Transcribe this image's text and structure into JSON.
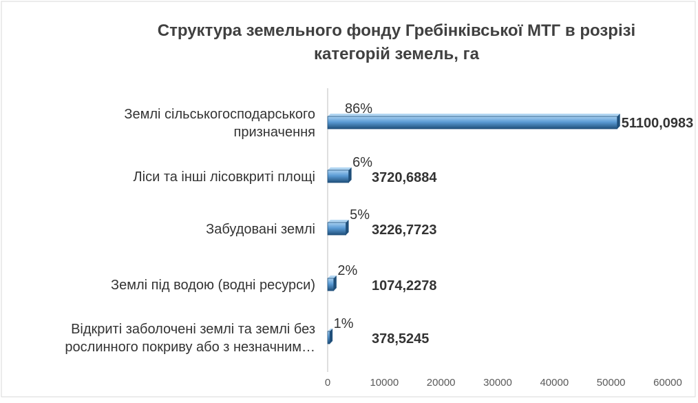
{
  "chart_data": {
    "type": "bar",
    "orientation": "horizontal",
    "title_lines": [
      "Структура  земельного фонду Гребінківської МТГ в розрізі",
      "категорій земель, га"
    ],
    "categories": [
      {
        "label_lines": [
          "Землі сільськогосподарського",
          "призначення"
        ],
        "value": 51100.0983,
        "value_label": "51100,0983",
        "pct_label": "86%"
      },
      {
        "label_lines": [
          "Ліси та інші  лісовкриті площі"
        ],
        "value": 3720.6884,
        "value_label": "3720,6884",
        "pct_label": "6%"
      },
      {
        "label_lines": [
          "Забудовані землі"
        ],
        "value": 3226.7723,
        "value_label": "3226,7723",
        "pct_label": "5%"
      },
      {
        "label_lines": [
          "Землі під водою (водні ресурси)"
        ],
        "value": 1074.2278,
        "value_label": "1074,2278",
        "pct_label": "2%"
      },
      {
        "label_lines": [
          "Відкриті заболочені землі та землі без",
          "рослинного покриву або з незначним…"
        ],
        "value": 378.5245,
        "value_label": "378,5245",
        "pct_label": "1%"
      }
    ],
    "x_ticks": [
      "0",
      "10000",
      "20000",
      "30000",
      "40000",
      "50000",
      "60000"
    ],
    "xlim": [
      0,
      60000
    ],
    "grid": false,
    "legend": "none",
    "colors": {
      "bar_light": "#a9d0f0",
      "bar_mid": "#5a9bd5",
      "bar_dark": "#1f4f7a",
      "text": "#333333",
      "axis": "#bfbfbf"
    }
  }
}
